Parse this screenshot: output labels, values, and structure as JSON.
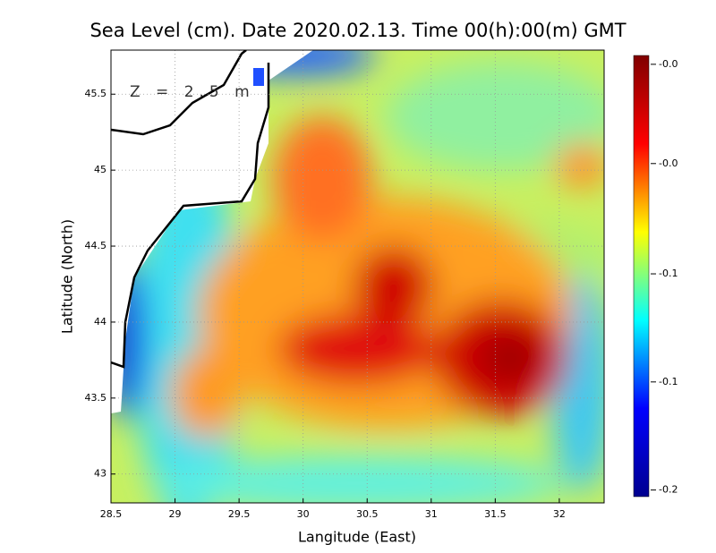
{
  "chart_data": {
    "type": "contour-map",
    "title": "Sea Level (cm). Date 2020.02.13. Time 00(h):00(m) GMT",
    "annotation": "Z = 2.5 m",
    "xlabel": "Langitude (East)",
    "ylabel": "Latitude (North)",
    "xlim": [
      28.5,
      32.35
    ],
    "ylim": [
      42.81,
      45.79
    ],
    "xticks": [
      28.5,
      29,
      29.5,
      30,
      30.5,
      31,
      31.5,
      32
    ],
    "yticks": [
      43,
      43.5,
      44,
      44.5,
      45,
      45.5
    ],
    "grid": true,
    "colorbar": {
      "lim": [
        -0.2,
        0.0
      ],
      "ticks": [
        {
          "value": -0.004,
          "label": "-0.0"
        },
        {
          "value": -0.049,
          "label": "-0.0"
        },
        {
          "value": -0.099,
          "label": "-0.1"
        },
        {
          "value": -0.148,
          "label": "-0.1"
        },
        {
          "value": -0.197,
          "label": "-0.2"
        }
      ],
      "colors": [
        "#00008f",
        "#0000ff",
        "#00ffff",
        "#ffff00",
        "#ff0000",
        "#800000"
      ]
    }
  }
}
